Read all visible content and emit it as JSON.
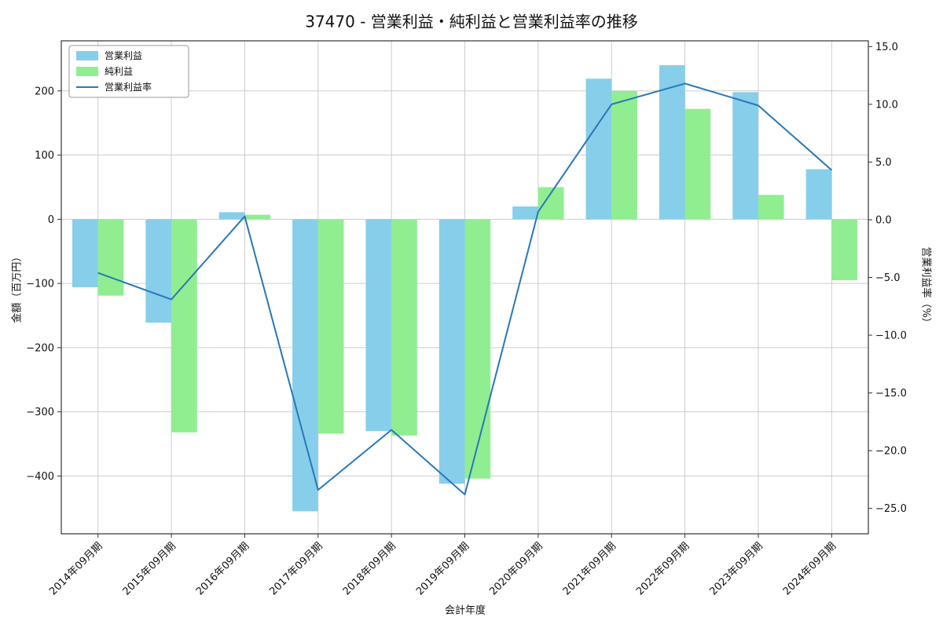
{
  "chart_data": {
    "type": "bar",
    "title": "37470 - 営業利益・純利益と営業利益率の推移",
    "xlabel": "会計年度",
    "ylabel_left": "金額（百万円）",
    "ylabel_right": "営業利益率（%）",
    "categories": [
      "2014年09月期",
      "2015年09月期",
      "2016年09月期",
      "2017年09月期",
      "2018年09月期",
      "2019年09月期",
      "2020年09月期",
      "2021年09月期",
      "2022年09月期",
      "2023年09月期",
      "2024年09月期"
    ],
    "series": [
      {
        "name": "営業利益",
        "type": "bar",
        "axis": "left",
        "color": "#87ceeb",
        "values": [
          -106,
          -161,
          11,
          -455,
          -330,
          -412,
          20,
          219,
          240,
          198,
          78
        ]
      },
      {
        "name": "純利益",
        "type": "bar",
        "axis": "left",
        "color": "#90ee90",
        "values": [
          -119,
          -332,
          7,
          -334,
          -337,
          -404,
          50,
          200,
          172,
          38,
          -95
        ]
      },
      {
        "name": "営業利益率",
        "type": "line",
        "axis": "right",
        "color": "#2878b8",
        "values": [
          -4.6,
          -6.9,
          0.3,
          -23.4,
          -18.2,
          -23.8,
          0.7,
          10.0,
          11.8,
          9.9,
          4.3
        ]
      }
    ],
    "left_ylim": [
      -490,
      278
    ],
    "left_ticks": [
      -400,
      -300,
      -200,
      -100,
      0,
      100,
      200
    ],
    "right_ylim": [
      -27.2,
      15.5
    ],
    "right_ticks": [
      -25.0,
      -20.0,
      -15.0,
      -10.0,
      -5.0,
      0.0,
      5.0,
      10.0,
      15.0
    ],
    "grid": true,
    "legend_position": "upper left",
    "colors": {
      "grid": "#cccccc",
      "frame": "#333333",
      "text": "#111111"
    }
  }
}
